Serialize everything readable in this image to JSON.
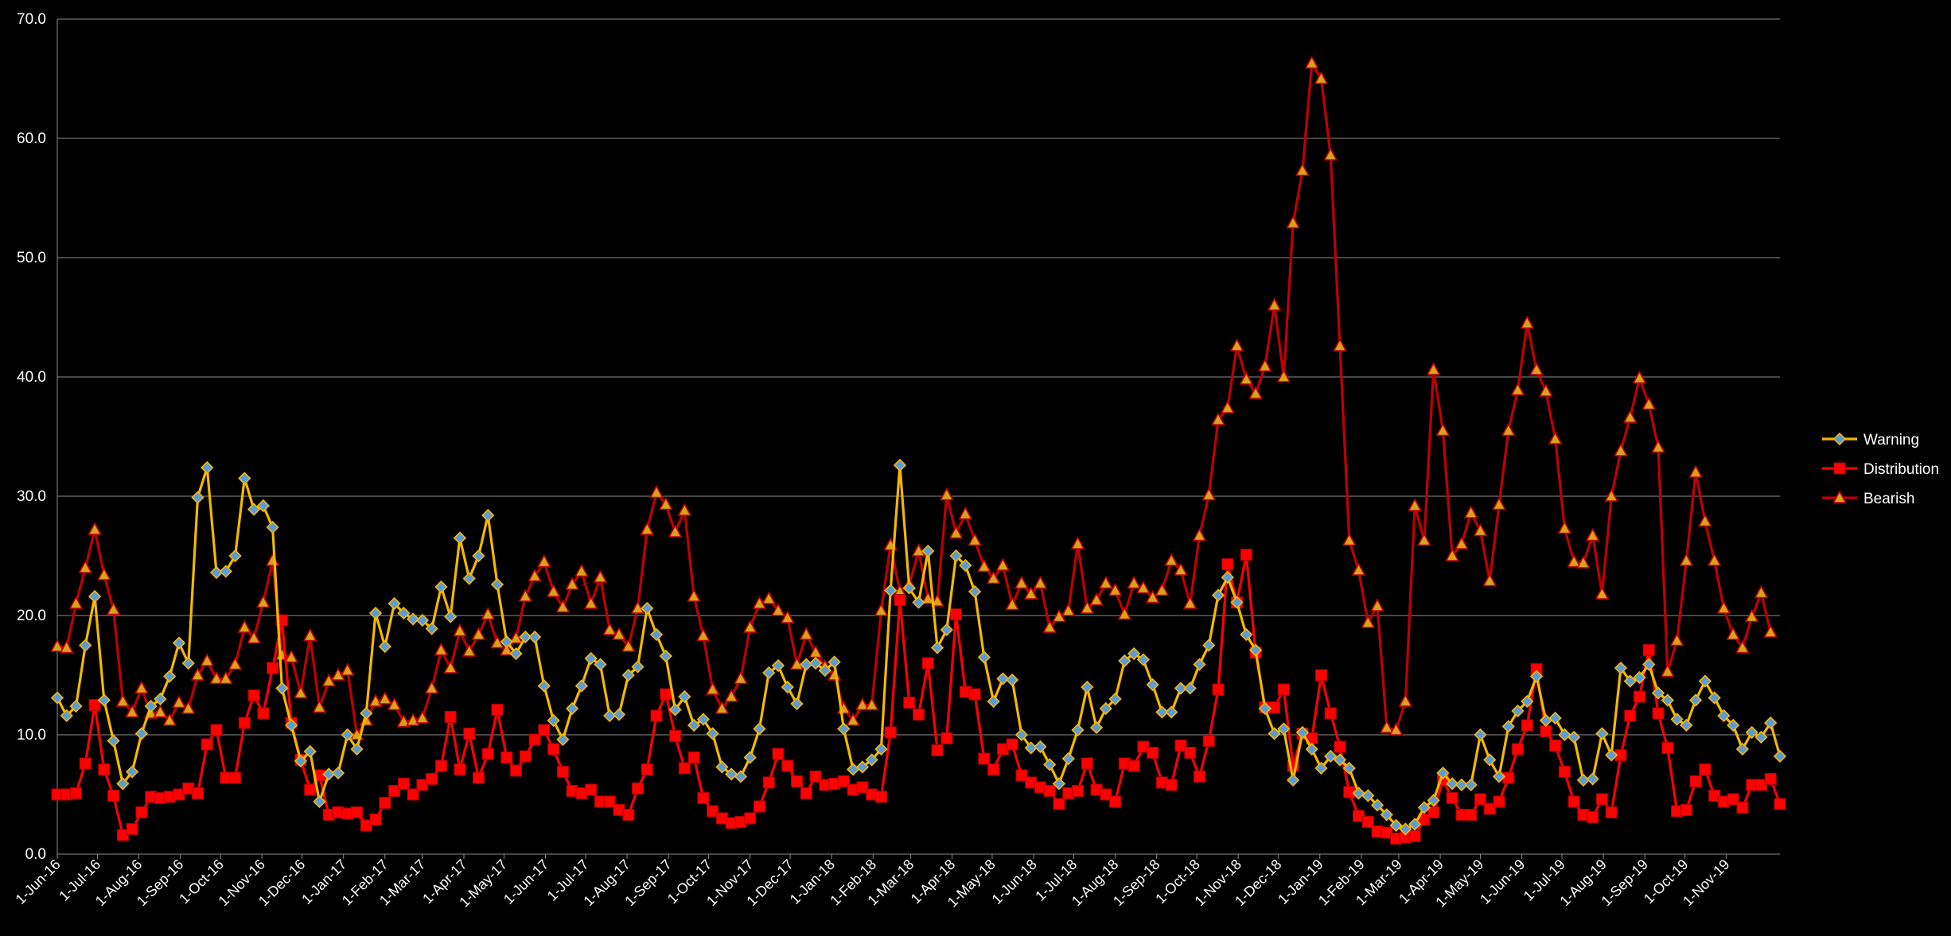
{
  "chart_data": {
    "type": "line",
    "ylim": [
      0,
      70
    ],
    "yticks": [
      "0.0",
      "10.0",
      "20.0",
      "30.0",
      "40.0",
      "50.0",
      "60.0",
      "70.0"
    ],
    "grid": "horizontal",
    "legend_position": "right",
    "x_tick_labels": [
      "1-Jun-16",
      "1-Jul-16",
      "1-Aug-16",
      "1-Sep-16",
      "1-Oct-16",
      "1-Nov-16",
      "1-Dec-16",
      "1-Jan-17",
      "1-Feb-17",
      "1-Mar-17",
      "1-Apr-17",
      "1-May-17",
      "1-Jun-17",
      "1-Jul-17",
      "1-Aug-17",
      "1-Sep-17",
      "1-Oct-17",
      "1-Nov-17",
      "1-Dec-17",
      "1-Jan-18",
      "1-Feb-18",
      "1-Mar-18",
      "1-Apr-18",
      "1-May-18",
      "1-Jun-18",
      "1-Jul-18",
      "1-Aug-18",
      "1-Sep-18",
      "1-Oct-18",
      "1-Nov-18",
      "1-Dec-18",
      "1-Jan-19",
      "1-Feb-19",
      "1-Mar-19",
      "1-Apr-19",
      "1-May-19",
      "1-Jun-19",
      "1-Jul-19",
      "1-Aug-19",
      "1-Sep-19",
      "1-Oct-19",
      "1-Nov-19"
    ],
    "x_start": "2016-06-01",
    "x_step_days": 7,
    "series": [
      {
        "name": "Warning",
        "color": "#f5b800",
        "marker": "diamond",
        "values": [
          13.1,
          11.6,
          12.4,
          17.5,
          21.6,
          12.9,
          9.5,
          5.9,
          6.9,
          10.1,
          12.4,
          13.0,
          14.9,
          17.7,
          16.0,
          29.9,
          32.4,
          23.6,
          23.7,
          25.0,
          31.5,
          28.9,
          29.2,
          27.4,
          13.9,
          10.8,
          7.8,
          8.6,
          4.4,
          6.7,
          6.8,
          10.0,
          8.8,
          11.8,
          20.2,
          17.4,
          21.0,
          20.2,
          19.7,
          19.6,
          18.9,
          22.4,
          19.9,
          26.5,
          23.1,
          25.0,
          28.4,
          22.6,
          17.8,
          16.8,
          18.2,
          18.2,
          14.1,
          11.2,
          9.6,
          12.2,
          14.1,
          16.4,
          15.9,
          11.6,
          11.7,
          15.0,
          15.7,
          20.6,
          18.4,
          16.6,
          12.1,
          13.2,
          10.8,
          11.3,
          10.1,
          7.3,
          6.7,
          6.5,
          8.1,
          10.5,
          15.2,
          15.8,
          14.0,
          12.6,
          15.9,
          16.0,
          15.4,
          16.1,
          10.5,
          7.1,
          7.3,
          7.9,
          8.8,
          22.1,
          32.6,
          22.3,
          21.1,
          25.4,
          17.3,
          18.8,
          25.0,
          24.2,
          22.0,
          16.5,
          12.8,
          14.7,
          14.6,
          10.0,
          8.9,
          9.0,
          7.5,
          5.9,
          8.0,
          10.4,
          14.0,
          10.6,
          12.2,
          13.0,
          16.2,
          16.8,
          16.3,
          14.2,
          11.9,
          11.9,
          13.9,
          13.9,
          15.9,
          17.5,
          21.7,
          23.2,
          21.1,
          18.4,
          17.1,
          12.2,
          10.1,
          10.5,
          6.2,
          10.2,
          8.8,
          7.2,
          8.2,
          7.9,
          7.2,
          5.1,
          4.9,
          4.1,
          3.3,
          2.4,
          2.1,
          2.5,
          3.9,
          4.5,
          6.8,
          5.9,
          5.8,
          5.8,
          10.0,
          7.9,
          6.5,
          10.7,
          12.0,
          12.8,
          14.9,
          11.2,
          11.4,
          10.0,
          9.8,
          6.2,
          6.3,
          10.1,
          8.3,
          15.6,
          14.5,
          14.8,
          15.9,
          13.5,
          12.9,
          11.3,
          10.8,
          12.9,
          14.5,
          13.1,
          11.6,
          10.8,
          8.8,
          10.2,
          9.8,
          11.0,
          8.2
        ]
      },
      {
        "name": "Distribution",
        "color": "#ff0000",
        "marker": "square",
        "values": [
          5.0,
          5.0,
          5.1,
          7.6,
          12.5,
          7.1,
          4.9,
          1.6,
          2.1,
          3.5,
          4.8,
          4.7,
          4.8,
          5.0,
          5.5,
          5.1,
          9.2,
          10.4,
          6.4,
          6.4,
          11.0,
          13.3,
          11.8,
          15.6,
          19.6,
          11.0,
          7.9,
          5.4,
          6.6,
          3.3,
          3.5,
          3.4,
          3.5,
          2.4,
          2.9,
          4.3,
          5.3,
          5.9,
          5.0,
          5.8,
          6.3,
          7.4,
          11.5,
          7.1,
          10.1,
          6.4,
          8.4,
          12.1,
          8.1,
          7.0,
          8.2,
          9.6,
          10.4,
          8.8,
          6.9,
          5.3,
          5.1,
          5.4,
          4.4,
          4.4,
          3.7,
          3.3,
          5.5,
          7.1,
          11.6,
          13.4,
          9.9,
          7.2,
          8.1,
          4.7,
          3.6,
          3.0,
          2.6,
          2.7,
          3.0,
          4.0,
          6.0,
          8.4,
          7.4,
          6.1,
          5.1,
          6.5,
          5.8,
          5.9,
          6.1,
          5.4,
          5.6,
          5.0,
          4.8,
          10.2,
          21.3,
          12.7,
          11.7,
          16.0,
          8.7,
          9.7,
          20.1,
          13.6,
          13.4,
          8.0,
          7.1,
          8.8,
          9.2,
          6.6,
          6.0,
          5.6,
          5.3,
          4.2,
          5.1,
          5.3,
          7.6,
          5.4,
          5.0,
          4.4,
          7.6,
          7.4,
          9.0,
          8.5,
          6.0,
          5.8,
          9.1,
          8.5,
          6.5,
          9.5,
          13.8,
          24.3,
          21.1,
          25.1,
          16.9,
          12.3,
          12.3,
          13.8,
          7.4,
          10.1,
          9.7,
          15.0,
          11.8,
          9.0,
          5.2,
          3.2,
          2.7,
          1.9,
          1.8,
          1.3,
          1.4,
          1.5,
          2.9,
          3.5,
          6.2,
          4.7,
          3.3,
          3.3,
          4.6,
          3.8,
          4.4,
          6.4,
          8.8,
          10.8,
          15.5,
          10.3,
          9.1,
          6.9,
          4.4,
          3.3,
          3.1,
          4.6,
          3.5,
          8.3,
          11.6,
          13.2,
          17.1,
          11.8,
          8.9,
          3.6,
          3.7,
          6.1,
          7.1,
          4.9,
          4.4,
          4.6,
          3.9,
          5.8,
          5.8,
          6.3,
          4.2
        ]
      },
      {
        "name": "Bearish",
        "color": "#c00000",
        "marker": "triangle",
        "values": [
          17.4,
          17.3,
          21.0,
          24.0,
          27.2,
          23.4,
          20.5,
          12.8,
          11.9,
          13.9,
          11.8,
          11.9,
          11.2,
          12.7,
          12.2,
          15.0,
          16.2,
          14.7,
          14.7,
          15.9,
          19.0,
          18.1,
          21.1,
          24.6,
          16.7,
          16.5,
          13.5,
          18.3,
          12.3,
          14.5,
          15.0,
          15.4,
          10.0,
          11.2,
          12.8,
          13.0,
          12.5,
          11.1,
          11.2,
          11.4,
          13.9,
          17.1,
          15.6,
          18.7,
          17.0,
          18.4,
          20.1,
          17.7,
          17.1,
          18.1,
          21.6,
          23.3,
          24.5,
          22.0,
          20.7,
          22.6,
          23.7,
          21.0,
          23.2,
          18.8,
          18.4,
          17.4,
          20.6,
          27.2,
          30.3,
          29.3,
          27.0,
          28.8,
          21.6,
          18.3,
          13.8,
          12.2,
          13.2,
          14.7,
          19.0,
          21.0,
          21.4,
          20.4,
          19.8,
          15.9,
          18.4,
          16.9,
          15.7,
          15.0,
          12.2,
          11.2,
          12.5,
          12.5,
          20.4,
          25.9,
          22.0,
          22.6,
          25.4,
          21.4,
          21.2,
          30.1,
          26.9,
          28.5,
          26.3,
          24.1,
          23.1,
          24.2,
          20.9,
          22.7,
          21.8,
          22.7,
          19.0,
          19.9,
          20.4,
          26.0,
          20.6,
          21.3,
          22.7,
          22.1,
          20.1,
          22.7,
          22.3,
          21.5,
          22.1,
          24.6,
          23.8,
          21.0,
          26.7,
          30.1,
          36.4,
          37.4,
          42.6,
          39.8,
          38.6,
          40.9,
          46.0,
          40.0,
          52.9,
          57.3,
          66.3,
          65.0,
          58.6,
          42.6,
          26.3,
          23.8,
          19.4,
          20.8,
          10.6,
          10.4,
          12.8,
          29.2,
          26.3,
          40.6,
          35.5,
          25.0,
          26.0,
          28.6,
          27.1,
          22.9,
          29.3,
          35.5,
          38.9,
          44.5,
          40.6,
          38.8,
          34.8,
          27.3,
          24.5,
          24.4,
          26.7,
          21.8,
          30.0,
          33.8,
          36.6,
          39.9,
          37.7,
          34.1,
          15.3,
          17.9,
          24.6,
          32.0,
          27.9,
          24.6,
          20.6,
          18.4,
          17.3,
          19.9,
          21.9,
          18.6
        ]
      }
    ]
  }
}
